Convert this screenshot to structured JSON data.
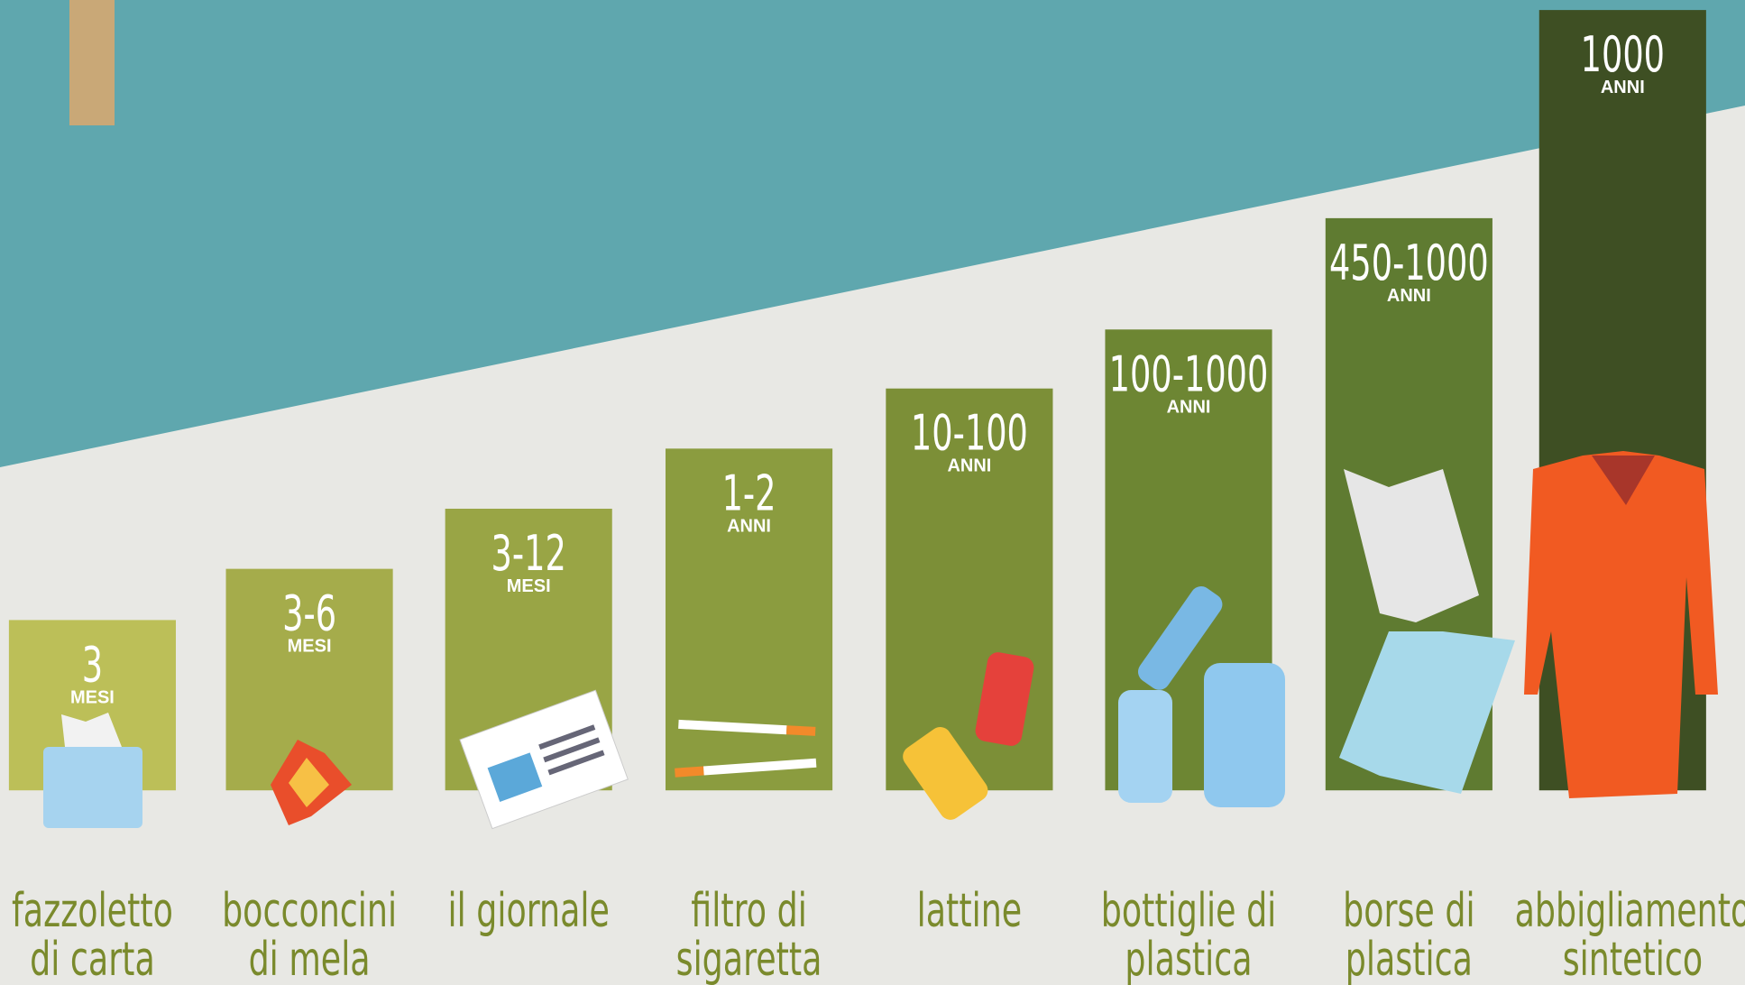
{
  "items": [
    {
      "value": "3",
      "unit": "MESI",
      "lines": [
        "fazzoletto",
        "di carta"
      ]
    },
    {
      "value": "3-6",
      "unit": "MESI",
      "lines": [
        "bocconcini",
        "di mela"
      ]
    },
    {
      "value": "3-12",
      "unit": "MESI",
      "lines": [
        "il giornale"
      ]
    },
    {
      "value": "1-2",
      "unit": "ANNI",
      "lines": [
        "filtro di",
        "sigaretta"
      ]
    },
    {
      "value": "10-100",
      "unit": "ANNI",
      "lines": [
        "lattine"
      ]
    },
    {
      "value": "100-1000",
      "unit": "ANNI",
      "lines": [
        "bottiglie di",
        "plastica"
      ]
    },
    {
      "value": "450-1000",
      "unit": "ANNI",
      "lines": [
        "borse di",
        "plastica"
      ]
    },
    {
      "value": "1000",
      "unit": "ANNI",
      "lines": [
        "abbigliamento",
        "sintetico"
      ]
    }
  ]
}
